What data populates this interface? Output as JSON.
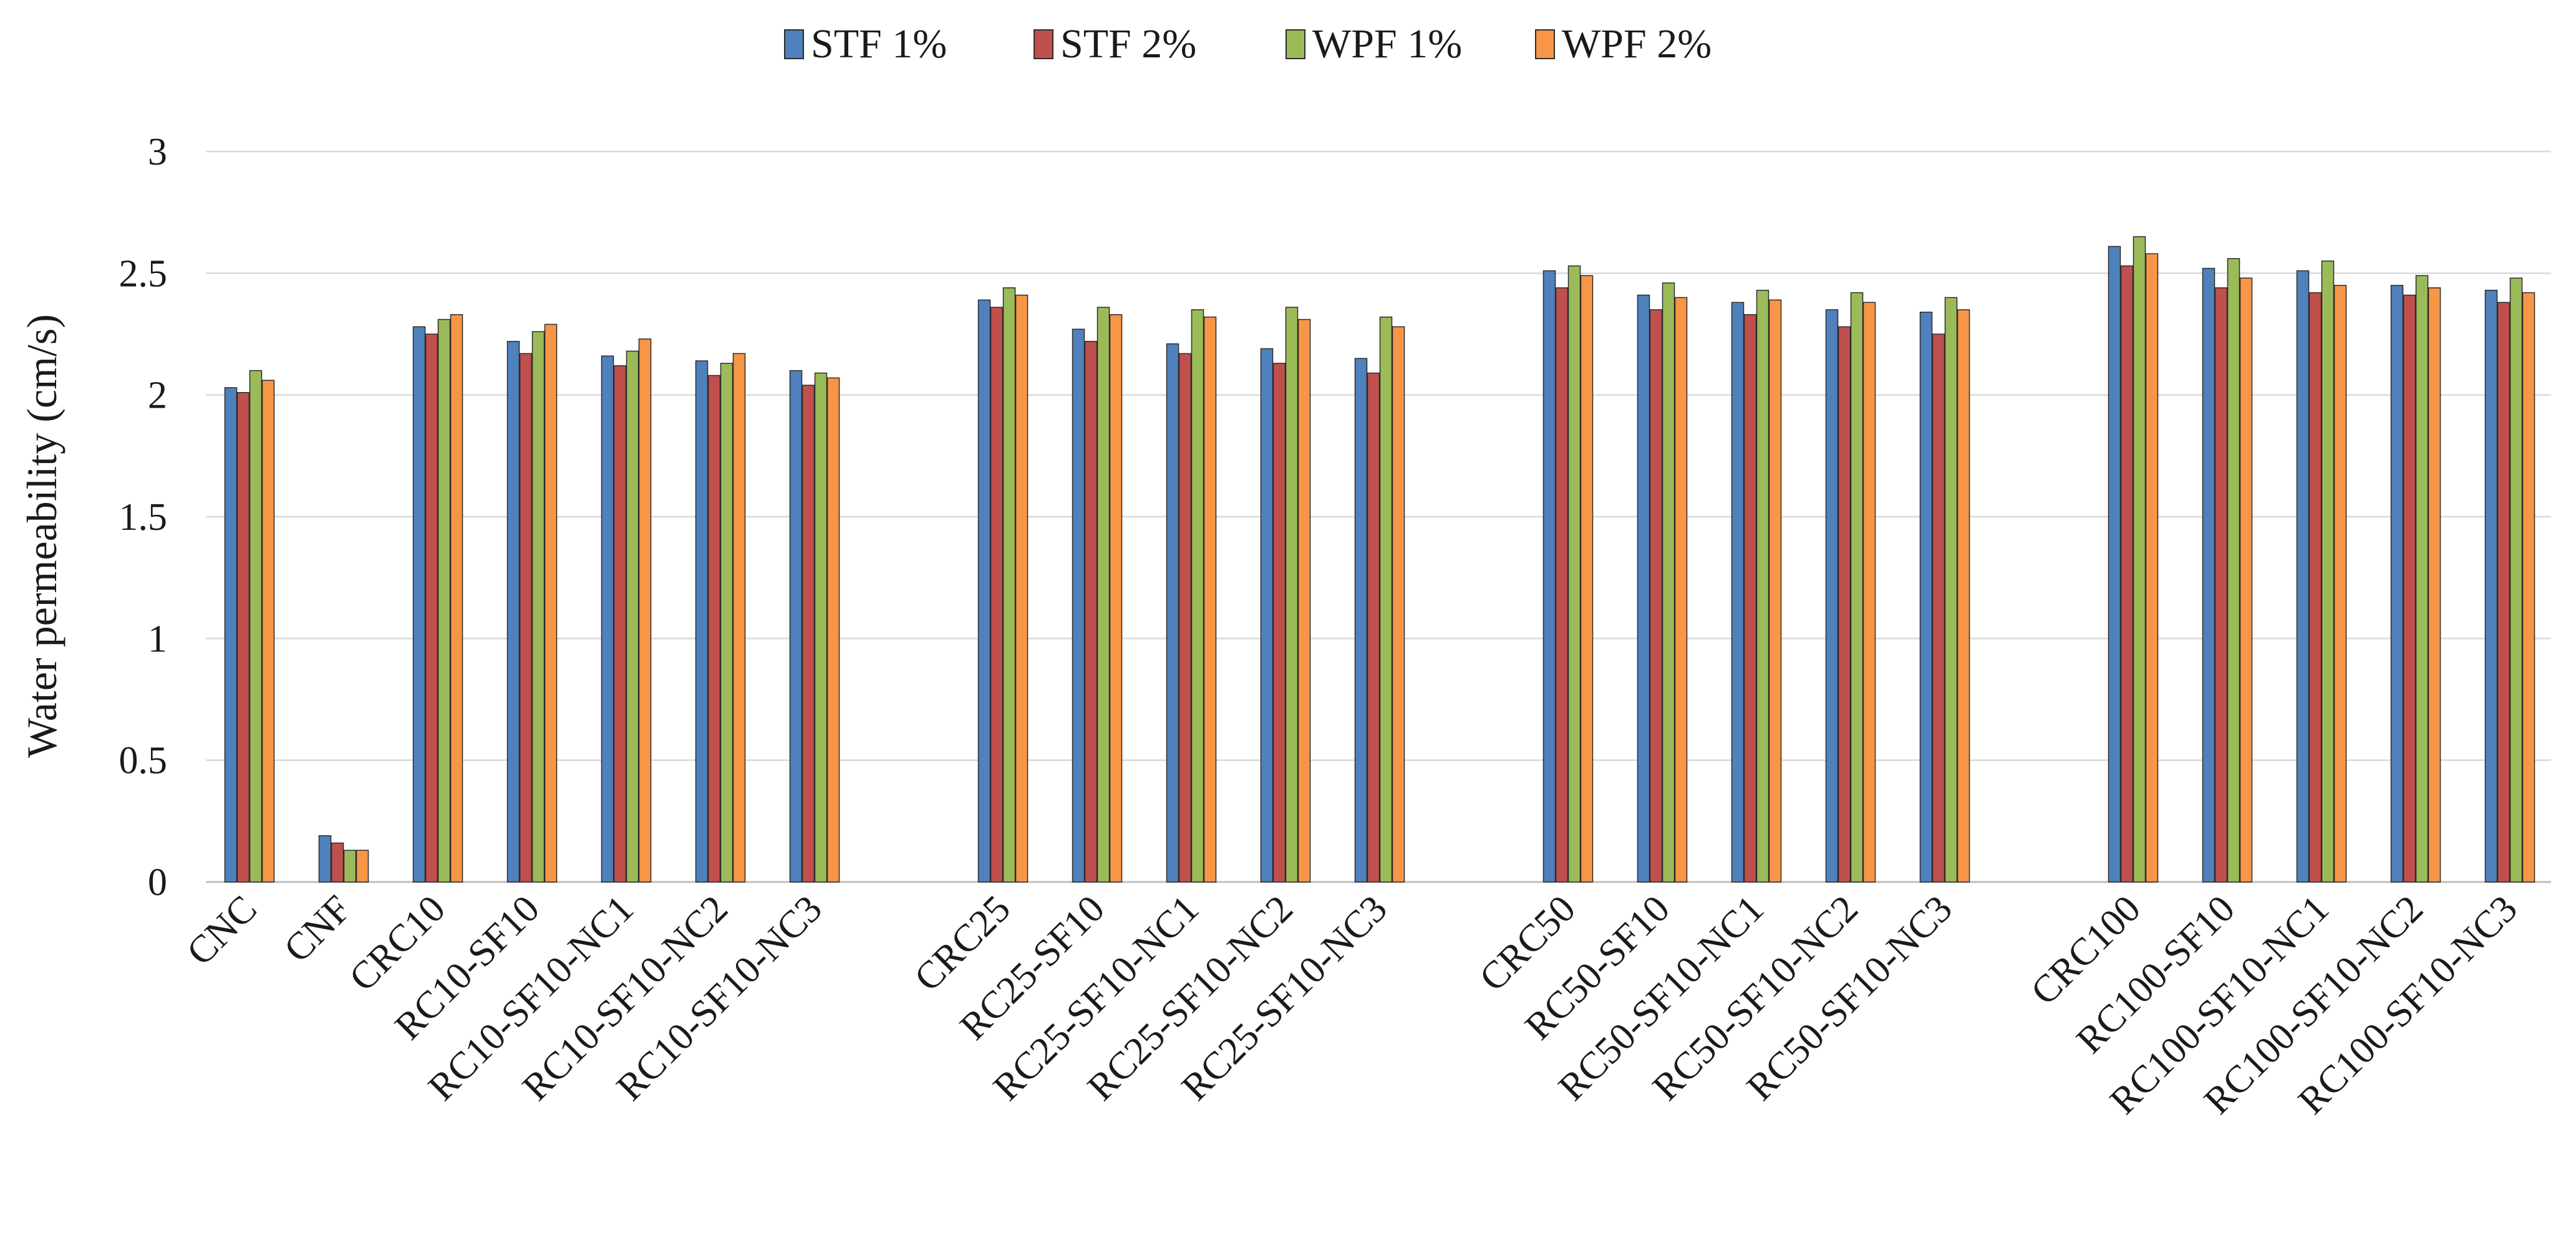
{
  "chart_data": {
    "type": "bar",
    "title": "",
    "xlabel": "",
    "ylabel": "Water permeability (cm/s)",
    "ylim": [
      0,
      3
    ],
    "yticks": [
      "0",
      "0.5",
      "1",
      "1.5",
      "2",
      "2.5",
      "3"
    ],
    "grid": true,
    "legend_position": "top-center",
    "groups": [
      [
        "CNC",
        "CNF",
        "CRC10",
        "RC10-SF10",
        "RC10-SF10-NC1",
        "RC10-SF10-NC2",
        "RC10-SF10-NC3"
      ],
      [
        "CRC25",
        "RC25-SF10",
        "RC25-SF10-NC1",
        "RC25-SF10-NC2",
        "RC25-SF10-NC3"
      ],
      [
        "CRC50",
        "RC50-SF10",
        "RC50-SF10-NC1",
        "RC50-SF10-NC2",
        "RC50-SF10-NC3"
      ],
      [
        "CRC100",
        "RC100-SF10",
        "RC100-SF10-NC1",
        "RC100-SF10-NC2",
        "RC100-SF10-NC3"
      ]
    ],
    "categories": [
      "CNC",
      "CNF",
      "CRC10",
      "RC10-SF10",
      "RC10-SF10-NC1",
      "RC10-SF10-NC2",
      "RC10-SF10-NC3",
      "CRC25",
      "RC25-SF10",
      "RC25-SF10-NC1",
      "RC25-SF10-NC2",
      "RC25-SF10-NC3",
      "CRC50",
      "RC50-SF10",
      "RC50-SF10-NC1",
      "RC50-SF10-NC2",
      "RC50-SF10-NC3",
      "CRC100",
      "RC100-SF10",
      "RC100-SF10-NC1",
      "RC100-SF10-NC2",
      "RC100-SF10-NC3"
    ],
    "series": [
      {
        "name": "STF 1%",
        "color": "#4f81bd",
        "values": [
          2.03,
          0.19,
          2.28,
          2.22,
          2.16,
          2.14,
          2.1,
          2.39,
          2.27,
          2.21,
          2.19,
          2.15,
          2.51,
          2.41,
          2.38,
          2.35,
          2.34,
          2.61,
          2.52,
          2.51,
          2.45,
          2.43
        ]
      },
      {
        "name": "STF 2%",
        "color": "#c0504d",
        "values": [
          2.01,
          0.16,
          2.25,
          2.17,
          2.12,
          2.08,
          2.04,
          2.36,
          2.22,
          2.17,
          2.13,
          2.09,
          2.44,
          2.35,
          2.33,
          2.28,
          2.25,
          2.53,
          2.44,
          2.42,
          2.41,
          2.38
        ]
      },
      {
        "name": "WPF 1%",
        "color": "#9bbb59",
        "values": [
          2.1,
          0.13,
          2.31,
          2.26,
          2.18,
          2.13,
          2.09,
          2.44,
          2.36,
          2.35,
          2.36,
          2.32,
          2.53,
          2.46,
          2.43,
          2.42,
          2.4,
          2.65,
          2.56,
          2.55,
          2.49,
          2.48
        ]
      },
      {
        "name": "WPF 2%",
        "color": "#f79646",
        "values": [
          2.06,
          0.13,
          2.33,
          2.29,
          2.23,
          2.17,
          2.07,
          2.41,
          2.33,
          2.32,
          2.31,
          2.28,
          2.49,
          2.4,
          2.39,
          2.38,
          2.35,
          2.58,
          2.48,
          2.45,
          2.44,
          2.42
        ]
      }
    ]
  }
}
